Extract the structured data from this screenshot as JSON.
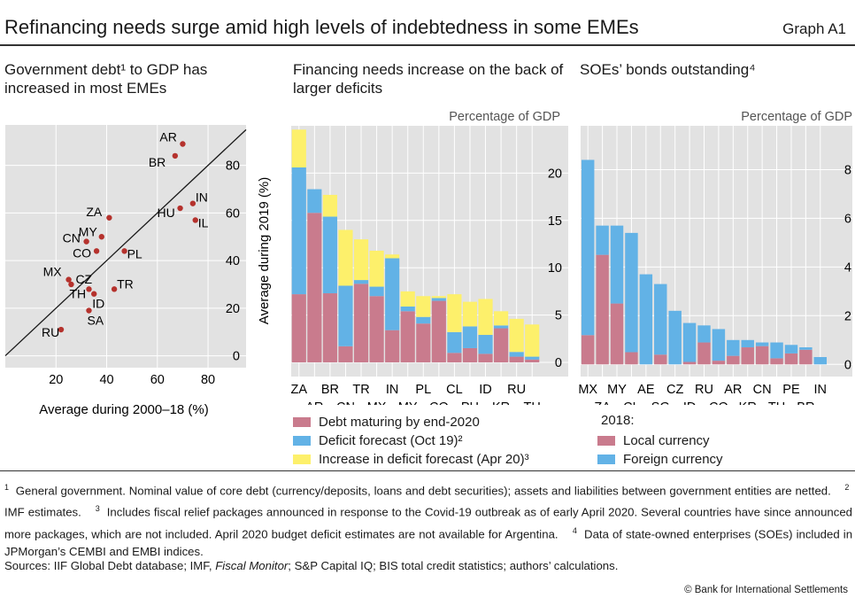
{
  "header": {
    "title": "Refinancing needs surge amid high levels of indebtedness in some EMEs",
    "graph_id": "Graph A1"
  },
  "panels": {
    "scatter_title": "Government debt¹ to GDP has increased in most EMEs",
    "fin_title": "Financing needs increase on the back of larger deficits",
    "soe_title": "SOEs’ bonds outstanding⁴",
    "fin_unit": "Percentage of GDP",
    "soe_unit": "Percentage of GDP",
    "soe_legend_title": "2018:"
  },
  "colors": {
    "debt": "#c97b8d",
    "deficit": "#62b2e6",
    "increase": "#fdf06b",
    "local": "#c97b8d",
    "foreign": "#62b2e6",
    "dot": "#b5322d",
    "plot_bg": "#e2e2e2",
    "grid": "#ffffff"
  },
  "chart_data": [
    {
      "type": "scatter",
      "xlabel": "Average during 2000–18 (%)",
      "ylabel": "Average during 2019 (%)",
      "xlim": [
        0,
        95
      ],
      "ylim": [
        -5,
        97
      ],
      "xticks": [
        20,
        40,
        60,
        80
      ],
      "yticks": [
        0,
        20,
        40,
        60,
        80
      ],
      "diagonal": "45-degree line",
      "points": [
        {
          "label": "AR",
          "x": 70,
          "y": 89
        },
        {
          "label": "BR",
          "x": 67,
          "y": 84
        },
        {
          "label": "IN",
          "x": 74,
          "y": 64
        },
        {
          "label": "HU",
          "x": 69,
          "y": 62
        },
        {
          "label": "IL",
          "x": 75,
          "y": 57
        },
        {
          "label": "ZA",
          "x": 41,
          "y": 58
        },
        {
          "label": "CN",
          "x": 32,
          "y": 48
        },
        {
          "label": "MY",
          "x": 38,
          "y": 50
        },
        {
          "label": "CO",
          "x": 36,
          "y": 44
        },
        {
          "label": "PL",
          "x": 47,
          "y": 44
        },
        {
          "label": "MX",
          "x": 25,
          "y": 32
        },
        {
          "label": "CZ",
          "x": 26,
          "y": 30
        },
        {
          "label": "TH",
          "x": 33,
          "y": 28
        },
        {
          "label": "TR",
          "x": 43,
          "y": 28
        },
        {
          "label": "ID",
          "x": 35,
          "y": 26
        },
        {
          "label": "SA",
          "x": 33,
          "y": 19
        },
        {
          "label": "RU",
          "x": 22,
          "y": 11
        }
      ]
    },
    {
      "type": "bar",
      "stacked": true,
      "categories": [
        "ZA",
        "AR",
        "BR",
        "CN",
        "TR",
        "MX",
        "IN",
        "MY",
        "PL",
        "CO",
        "CL",
        "PH",
        "ID",
        "KR",
        "RU",
        "TH"
      ],
      "series": [
        {
          "name": "Debt maturing by end-2020",
          "values": [
            7.2,
            15.8,
            7.3,
            1.7,
            8.3,
            7.0,
            3.4,
            5.4,
            4.1,
            6.5,
            1.0,
            1.5,
            0.9,
            3.6,
            0.6,
            0.3
          ]
        },
        {
          "name": "Deficit forecast (Oct 19)",
          "values": [
            13.4,
            2.5,
            8.1,
            6.4,
            0.4,
            1.0,
            7.6,
            0.5,
            0.7,
            0.3,
            2.2,
            2.3,
            2.0,
            0.3,
            0.5,
            0.3
          ]
        },
        {
          "name": "Increase in deficit forecast (Apr 20)",
          "values": [
            4.0,
            0,
            2.3,
            5.9,
            4.3,
            3.8,
            0.4,
            1.6,
            2.2,
            0.2,
            4.0,
            2.6,
            3.8,
            1.5,
            3.5,
            3.4
          ]
        }
      ],
      "ylim": [
        -1.5,
        25
      ],
      "yticks": [
        0,
        5,
        10,
        15,
        20
      ],
      "legend": [
        "Debt maturing by end-2020",
        "Deficit forecast (Oct 19)²",
        "Increase in deficit forecast (Apr 20)³"
      ]
    },
    {
      "type": "bar",
      "stacked": true,
      "categories": [
        "MX",
        "ZA",
        "MY",
        "CL",
        "AE",
        "SG",
        "CZ",
        "ID",
        "RU",
        "CO",
        "AR",
        "KR",
        "CN",
        "TH",
        "PE",
        "BR",
        "IN"
      ],
      "series": [
        {
          "name": "Local currency",
          "values": [
            1.2,
            4.5,
            2.5,
            0.5,
            0,
            0.4,
            0,
            0.1,
            0.9,
            0.15,
            0.35,
            0.7,
            0.75,
            0.25,
            0.45,
            0.6,
            0
          ]
        },
        {
          "name": "Foreign currency",
          "values": [
            7.2,
            1.2,
            3.2,
            4.9,
            3.7,
            2.9,
            2.2,
            1.6,
            0.7,
            1.3,
            0.65,
            0.3,
            0.15,
            0.65,
            0.35,
            0.1,
            0.3
          ]
        }
      ],
      "ylim": [
        -0.5,
        9.8
      ],
      "yticks": [
        0,
        2,
        4,
        6,
        8
      ],
      "legend": [
        "Local currency",
        "Foreign currency"
      ]
    }
  ],
  "notes": {
    "n1": "General government. Nominal value of core debt (currency/deposits, loans and debt securities); assets and liabilities between government entities are netted.",
    "n2": "IMF estimates.",
    "n3": "Includes fiscal relief packages announced in response to the Covid-19 outbreak as of early April 2020. Several countries have since announced more packages, which are not included. April 2020 budget deficit estimates are not available for Argentina.",
    "n4": "Data of state-owned enterprises (SOEs) included in JPMorgan’s CEMBI and EMBI indices.",
    "sources_pre": "Sources: IIF Global Debt database; IMF, ",
    "sources_italic": "Fiscal Monitor",
    "sources_post": "; S&P Capital IQ; BIS total credit statistics; authors’ calculations.",
    "copyright": "© Bank for International Settlements"
  }
}
